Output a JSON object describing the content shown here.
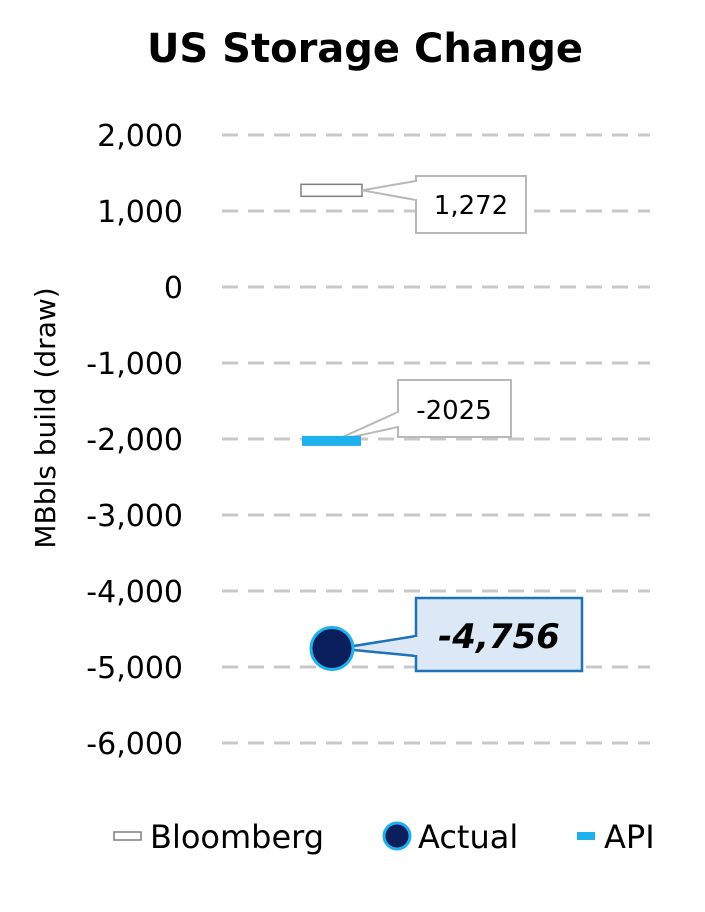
{
  "chart_data": {
    "type": "scatter",
    "title": "US Storage Change",
    "ylabel": "MBbls build (draw)",
    "ylim": [
      -6000,
      2000
    ],
    "yticks": [
      2000,
      1000,
      0,
      -1000,
      -2000,
      -3000,
      -4000,
      -5000,
      -6000
    ],
    "ytick_labels": [
      "2,000",
      "1,000",
      "0",
      "-1,000",
      "-2,000",
      "-3,000",
      "-4,000",
      "-5,000",
      "-6,000"
    ],
    "grid": true,
    "legend_position": "bottom",
    "series": [
      {
        "name": "Bloomberg",
        "value": 1272,
        "label": "1,272",
        "marker": "hollow-dash",
        "color": "#ffffff",
        "edge": "#7f7f7f"
      },
      {
        "name": "Actual",
        "value": -4756,
        "label": "-4,756",
        "marker": "circle",
        "color": "#0b1f5c",
        "edge": "#1fb0ee"
      },
      {
        "name": "API",
        "value": -2025,
        "label": "-2025",
        "marker": "dash",
        "color": "#1fb0ee",
        "edge": "#1fb0ee"
      }
    ],
    "colors": {
      "grid": "#c8c8c8",
      "callout_gray": "#b8b8b8",
      "callout_blue": "#1f72b8",
      "callout_blue_fill": "#dce8f5"
    }
  }
}
